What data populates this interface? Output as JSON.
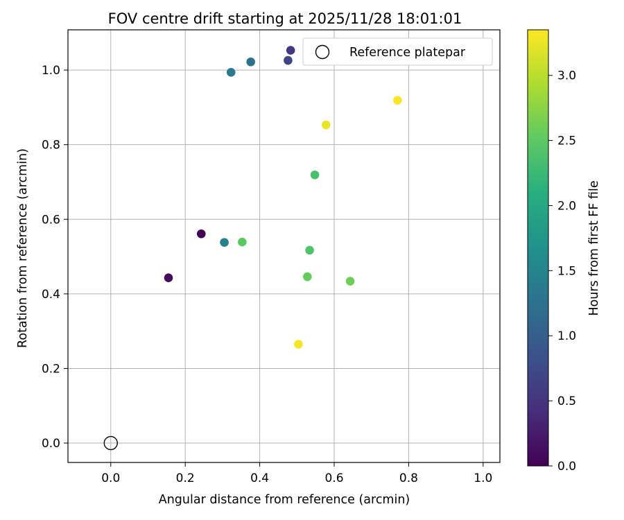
{
  "chart_data": {
    "type": "scatter",
    "title": "FOV centre drift starting at 2025/11/28 18:01:01",
    "xlabel": "Angular distance from reference (arcmin)",
    "ylabel": "Rotation from reference (arcmin)",
    "xlim": [
      -0.115,
      1.045
    ],
    "ylim": [
      -0.052,
      1.108
    ],
    "xticks": [
      0.0,
      0.2,
      0.4,
      0.6,
      0.8,
      1.0
    ],
    "xtick_labels": [
      "0.0",
      "0.2",
      "0.4",
      "0.6",
      "0.8",
      "1.0"
    ],
    "yticks": [
      0.0,
      0.2,
      0.4,
      0.6,
      0.8,
      1.0
    ],
    "ytick_labels": [
      "0.0",
      "0.2",
      "0.4",
      "0.6",
      "0.8",
      "1.0"
    ],
    "grid": true,
    "legend": {
      "position": "top-right",
      "entries": [
        "Reference platepar"
      ]
    },
    "reference": {
      "label": "Reference platepar",
      "x": 0.0,
      "y": 0.0
    },
    "colorbar": {
      "label": "Hours from first FF file",
      "range": [
        0.0,
        3.35
      ],
      "ticks": [
        0.0,
        0.5,
        1.0,
        1.5,
        2.0,
        2.5,
        3.0
      ],
      "tick_labels": [
        "0.0",
        "0.5",
        "1.0",
        "1.5",
        "2.0",
        "2.5",
        "3.0"
      ],
      "colormap": "viridis"
    },
    "points": [
      {
        "x": 0.243,
        "y": 0.561,
        "hours": 0.0
      },
      {
        "x": 0.155,
        "y": 0.443,
        "hours": 0.1
      },
      {
        "x": 0.483,
        "y": 1.053,
        "hours": 0.55
      },
      {
        "x": 0.476,
        "y": 1.026,
        "hours": 0.7
      },
      {
        "x": 0.376,
        "y": 1.022,
        "hours": 1.25
      },
      {
        "x": 0.323,
        "y": 0.994,
        "hours": 1.35
      },
      {
        "x": 0.305,
        "y": 0.538,
        "hours": 1.45
      },
      {
        "x": 0.548,
        "y": 0.719,
        "hours": 2.35
      },
      {
        "x": 0.534,
        "y": 0.517,
        "hours": 2.4
      },
      {
        "x": 0.353,
        "y": 0.539,
        "hours": 2.5
      },
      {
        "x": 0.528,
        "y": 0.446,
        "hours": 2.55
      },
      {
        "x": 0.643,
        "y": 0.434,
        "hours": 2.6
      },
      {
        "x": 0.578,
        "y": 0.853,
        "hours": 3.25
      },
      {
        "x": 0.504,
        "y": 0.265,
        "hours": 3.3
      },
      {
        "x": 0.77,
        "y": 0.919,
        "hours": 3.33
      }
    ]
  }
}
